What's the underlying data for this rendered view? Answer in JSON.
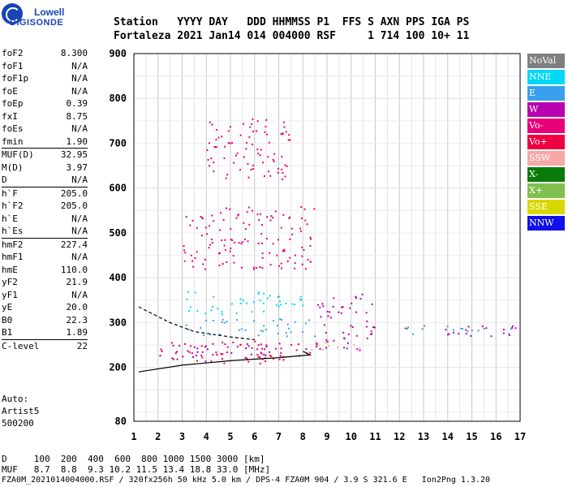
{
  "logo": {
    "line1": "Lowell",
    "line2": "DIGISONDE"
  },
  "header": {
    "row1": "Station   YYYY DAY   DDD HHMMSS P1  FFS S AXN PPS IGA PS",
    "row2": "Fortaleza 2021 Jan14 014 004000 RSF     1 714 100 10+ 11"
  },
  "params": [
    {
      "name": "foF2",
      "value": "8.300"
    },
    {
      "name": "foF1",
      "value": "N/A"
    },
    {
      "name": "foF1p",
      "value": "N/A"
    },
    {
      "name": "foE",
      "value": "N/A"
    },
    {
      "name": "foEp",
      "value": "0.39"
    },
    {
      "name": "fxI",
      "value": "8.75"
    },
    {
      "name": "foEs",
      "value": "N/A"
    },
    {
      "name": "fmin",
      "value": "1.90"
    },
    {
      "name": "MUF(D)",
      "value": "32.95",
      "sep": true
    },
    {
      "name": "M(D)",
      "value": "3.97"
    },
    {
      "name": "D",
      "value": "N/A"
    },
    {
      "name": "h`F",
      "value": "205.0",
      "sep": true
    },
    {
      "name": "h`F2",
      "value": "205.0"
    },
    {
      "name": "h`E",
      "value": "N/A"
    },
    {
      "name": "h`Es",
      "value": "N/A"
    },
    {
      "name": "hmF2",
      "value": "227.4",
      "sep": true
    },
    {
      "name": "hmF1",
      "value": "N/A"
    },
    {
      "name": "hmE",
      "value": "110.0"
    },
    {
      "name": "yF2",
      "value": "21.9"
    },
    {
      "name": "yF1",
      "value": "N/A"
    },
    {
      "name": "yE",
      "value": "20.0"
    },
    {
      "name": "B0",
      "value": "22.3"
    },
    {
      "name": "B1",
      "value": "1.89"
    },
    {
      "name": "C-level",
      "value": "22",
      "sep": true
    }
  ],
  "auto": {
    "l1": "Auto:",
    "l2": "Artist5",
    "l3": "500200"
  },
  "legend": [
    {
      "label": "NoVal",
      "color": "#7f7f7f"
    },
    {
      "label": "NNE",
      "color": "#00d8f8"
    },
    {
      "label": "E",
      "color": "#3aa0ee"
    },
    {
      "label": "W",
      "color": "#b800b0"
    },
    {
      "label": "Vo-",
      "color": "#e8007a"
    },
    {
      "label": "Vo+",
      "color": "#ee0040"
    },
    {
      "label": "SSW",
      "color": "#f4a8a8"
    },
    {
      "label": "X-",
      "color": "#0a7a0a"
    },
    {
      "label": "X+",
      "color": "#80c050"
    },
    {
      "label": "SSE",
      "color": "#d8d800"
    },
    {
      "label": "NNW",
      "color": "#1010e8"
    }
  ],
  "footer": {
    "row1": "D     100  200  400  600  800 1000 1500 3000 [km]",
    "row2": "MUF   8.7  8.8  9.3 10.2 11.5 13.4 18.8 33.0 [MHz]",
    "row3": "FZA0M_2021014004000.RSF / 320fx256h 50 kHz 5.0 km / DPS-4 FZA0M 904 / 3.9 S 321.6 E   Ion2Png 1.3.20"
  },
  "chart_data": {
    "type": "scatter",
    "title": "",
    "xlabel": "",
    "ylabel": "",
    "xlim": [
      1,
      17
    ],
    "ylim": [
      80,
      900
    ],
    "xticks": [
      1,
      2,
      3,
      4,
      5,
      6,
      7,
      8,
      9,
      10,
      11,
      12,
      13,
      14,
      15,
      16,
      17
    ],
    "yticks": [
      80,
      200,
      300,
      400,
      500,
      600,
      700,
      800,
      900
    ],
    "grid": true,
    "legend_position": "right",
    "clusters": [
      {
        "series": "Vo+",
        "f_range": [
          2.0,
          8.3
        ],
        "h_range": [
          210,
          260
        ]
      },
      {
        "series": "W",
        "f_range": [
          2.0,
          8.3
        ],
        "h_range": [
          215,
          255
        ]
      },
      {
        "series": "E",
        "f_range": [
          3.0,
          8.6
        ],
        "h_range": [
          270,
          310
        ]
      },
      {
        "series": "NNE",
        "f_range": [
          3.0,
          8.0
        ],
        "h_range": [
          320,
          370
        ]
      },
      {
        "series": "Vo-",
        "f_range": [
          3.0,
          8.5
        ],
        "h_range": [
          420,
          560
        ]
      },
      {
        "series": "Vo-",
        "f_range": [
          4.0,
          7.5
        ],
        "h_range": [
          620,
          760
        ]
      },
      {
        "series": "W",
        "f_range": [
          8.5,
          11.0
        ],
        "h_range": [
          240,
          370
        ]
      },
      {
        "series": "SSW",
        "f_range": [
          8.3,
          11.0
        ],
        "h_range": [
          240,
          260
        ]
      },
      {
        "series": "W",
        "f_range": [
          12.0,
          16.8
        ],
        "h_range": [
          270,
          295
        ]
      },
      {
        "series": "E",
        "f_range": [
          12.0,
          16.8
        ],
        "h_range": [
          275,
          295
        ]
      }
    ],
    "trace_lines": [
      {
        "name": "profile",
        "points": [
          [
            1.2,
            190
          ],
          [
            3.0,
            205
          ],
          [
            5.0,
            215
          ],
          [
            7.0,
            222
          ],
          [
            8.3,
            228
          ],
          [
            8.0,
            236
          ]
        ]
      },
      {
        "name": "dashed",
        "points": [
          [
            1.2,
            335
          ],
          [
            2.5,
            300
          ],
          [
            3.5,
            280
          ],
          [
            5.0,
            268
          ],
          [
            6.0,
            262
          ]
        ]
      }
    ]
  }
}
